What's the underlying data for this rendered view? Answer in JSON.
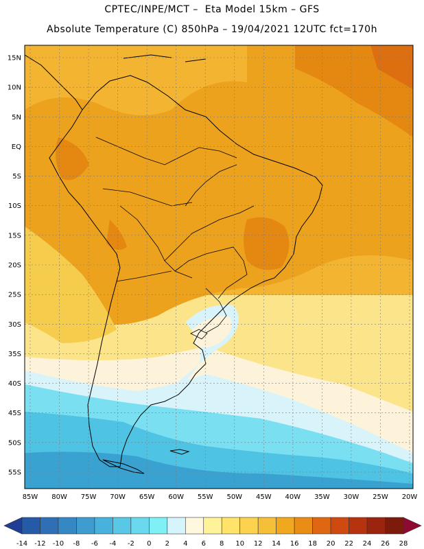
{
  "header": {
    "line1": "CPTEC/INPE/MCT –  Eta Model 15km – GFS",
    "line2": "Absolute Temperature (C) 850hPa – 19/04/2021 12UTC fct=170h"
  },
  "axes": {
    "lat_labels": [
      "15N",
      "10N",
      "5N",
      "EQ",
      "5S",
      "10S",
      "15S",
      "20S",
      "25S",
      "30S",
      "35S",
      "40S",
      "45S",
      "50S",
      "55S"
    ],
    "lat_values": [
      15,
      10,
      5,
      0,
      -5,
      -10,
      -15,
      -20,
      -25,
      -30,
      -35,
      -40,
      -45,
      -50,
      -55
    ],
    "lon_labels": [
      "85W",
      "80W",
      "75W",
      "70W",
      "65W",
      "60W",
      "55W",
      "50W",
      "45W",
      "40W",
      "35W",
      "30W",
      "25W",
      "20W"
    ],
    "lon_values": [
      -85,
      -80,
      -75,
      -70,
      -65,
      -60,
      -55,
      -50,
      -45,
      -40,
      -35,
      -30,
      -25,
      -20
    ]
  },
  "legend": {
    "labels": [
      "-14",
      "-12",
      "-10",
      "-8",
      "-6",
      "-4",
      "-2",
      "0",
      "2",
      "4",
      "6",
      "8",
      "10",
      "12",
      "14",
      "16",
      "18",
      "20",
      "22",
      "24",
      "26",
      "28"
    ],
    "colors": [
      "#1f3e94",
      "#255aa6",
      "#2f6fb6",
      "#3688c4",
      "#3e9ccf",
      "#48b2dc",
      "#58c8e6",
      "#6ad9ee",
      "#7ef0f6",
      "#d6f4fb",
      "#fff7de",
      "#fff39a",
      "#ffe36a",
      "#fcd24e",
      "#f5bf38",
      "#f1a81f",
      "#ea8d17",
      "#e06711",
      "#cf4a10",
      "#b7330f",
      "#9a240e",
      "#7c1a0c",
      "#8f0a30"
    ]
  },
  "map": {
    "colors": {
      "ocean_cold_deep": "#3aa2d0",
      "ocean_cold": "#4fc3e3",
      "ocean_cool": "#79dff1",
      "ocean_pale": "#d8f3fa",
      "ocean_cream": "#fdf3da",
      "light_yellow": "#fbe48a",
      "yellow": "#f6cc4d",
      "orange_light": "#f2b431",
      "orange": "#eda21d",
      "orange_dark": "#e48812",
      "hot": "#dd6f10",
      "hotter": "#cf560e"
    }
  }
}
